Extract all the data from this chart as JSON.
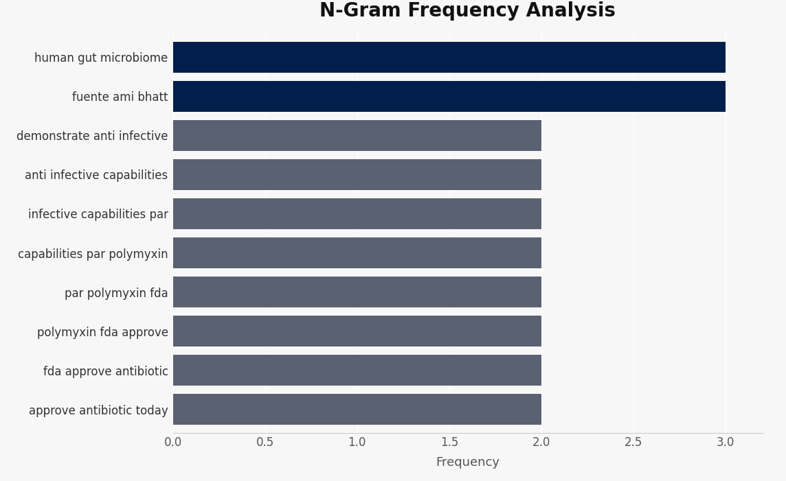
{
  "title": "N-Gram Frequency Analysis",
  "xlabel": "Frequency",
  "categories": [
    "approve antibiotic today",
    "fda approve antibiotic",
    "polymyxin fda approve",
    "par polymyxin fda",
    "capabilities par polymyxin",
    "infective capabilities par",
    "anti infective capabilities",
    "demonstrate anti infective",
    "fuente ami bhatt",
    "human gut microbiome"
  ],
  "values": [
    2,
    2,
    2,
    2,
    2,
    2,
    2,
    2,
    3,
    3
  ],
  "bar_colors": [
    "#5a6272",
    "#5a6272",
    "#5a6272",
    "#5a6272",
    "#5a6272",
    "#5a6272",
    "#5a6272",
    "#5a6272",
    "#021f4b",
    "#021f4b"
  ],
  "background_color": "#f7f7f7",
  "xlim": [
    0,
    3.2
  ],
  "xticks": [
    0.0,
    0.5,
    1.0,
    1.5,
    2.0,
    2.5,
    3.0
  ],
  "title_fontsize": 20,
  "label_fontsize": 13,
  "tick_fontsize": 12,
  "bar_height": 0.78
}
